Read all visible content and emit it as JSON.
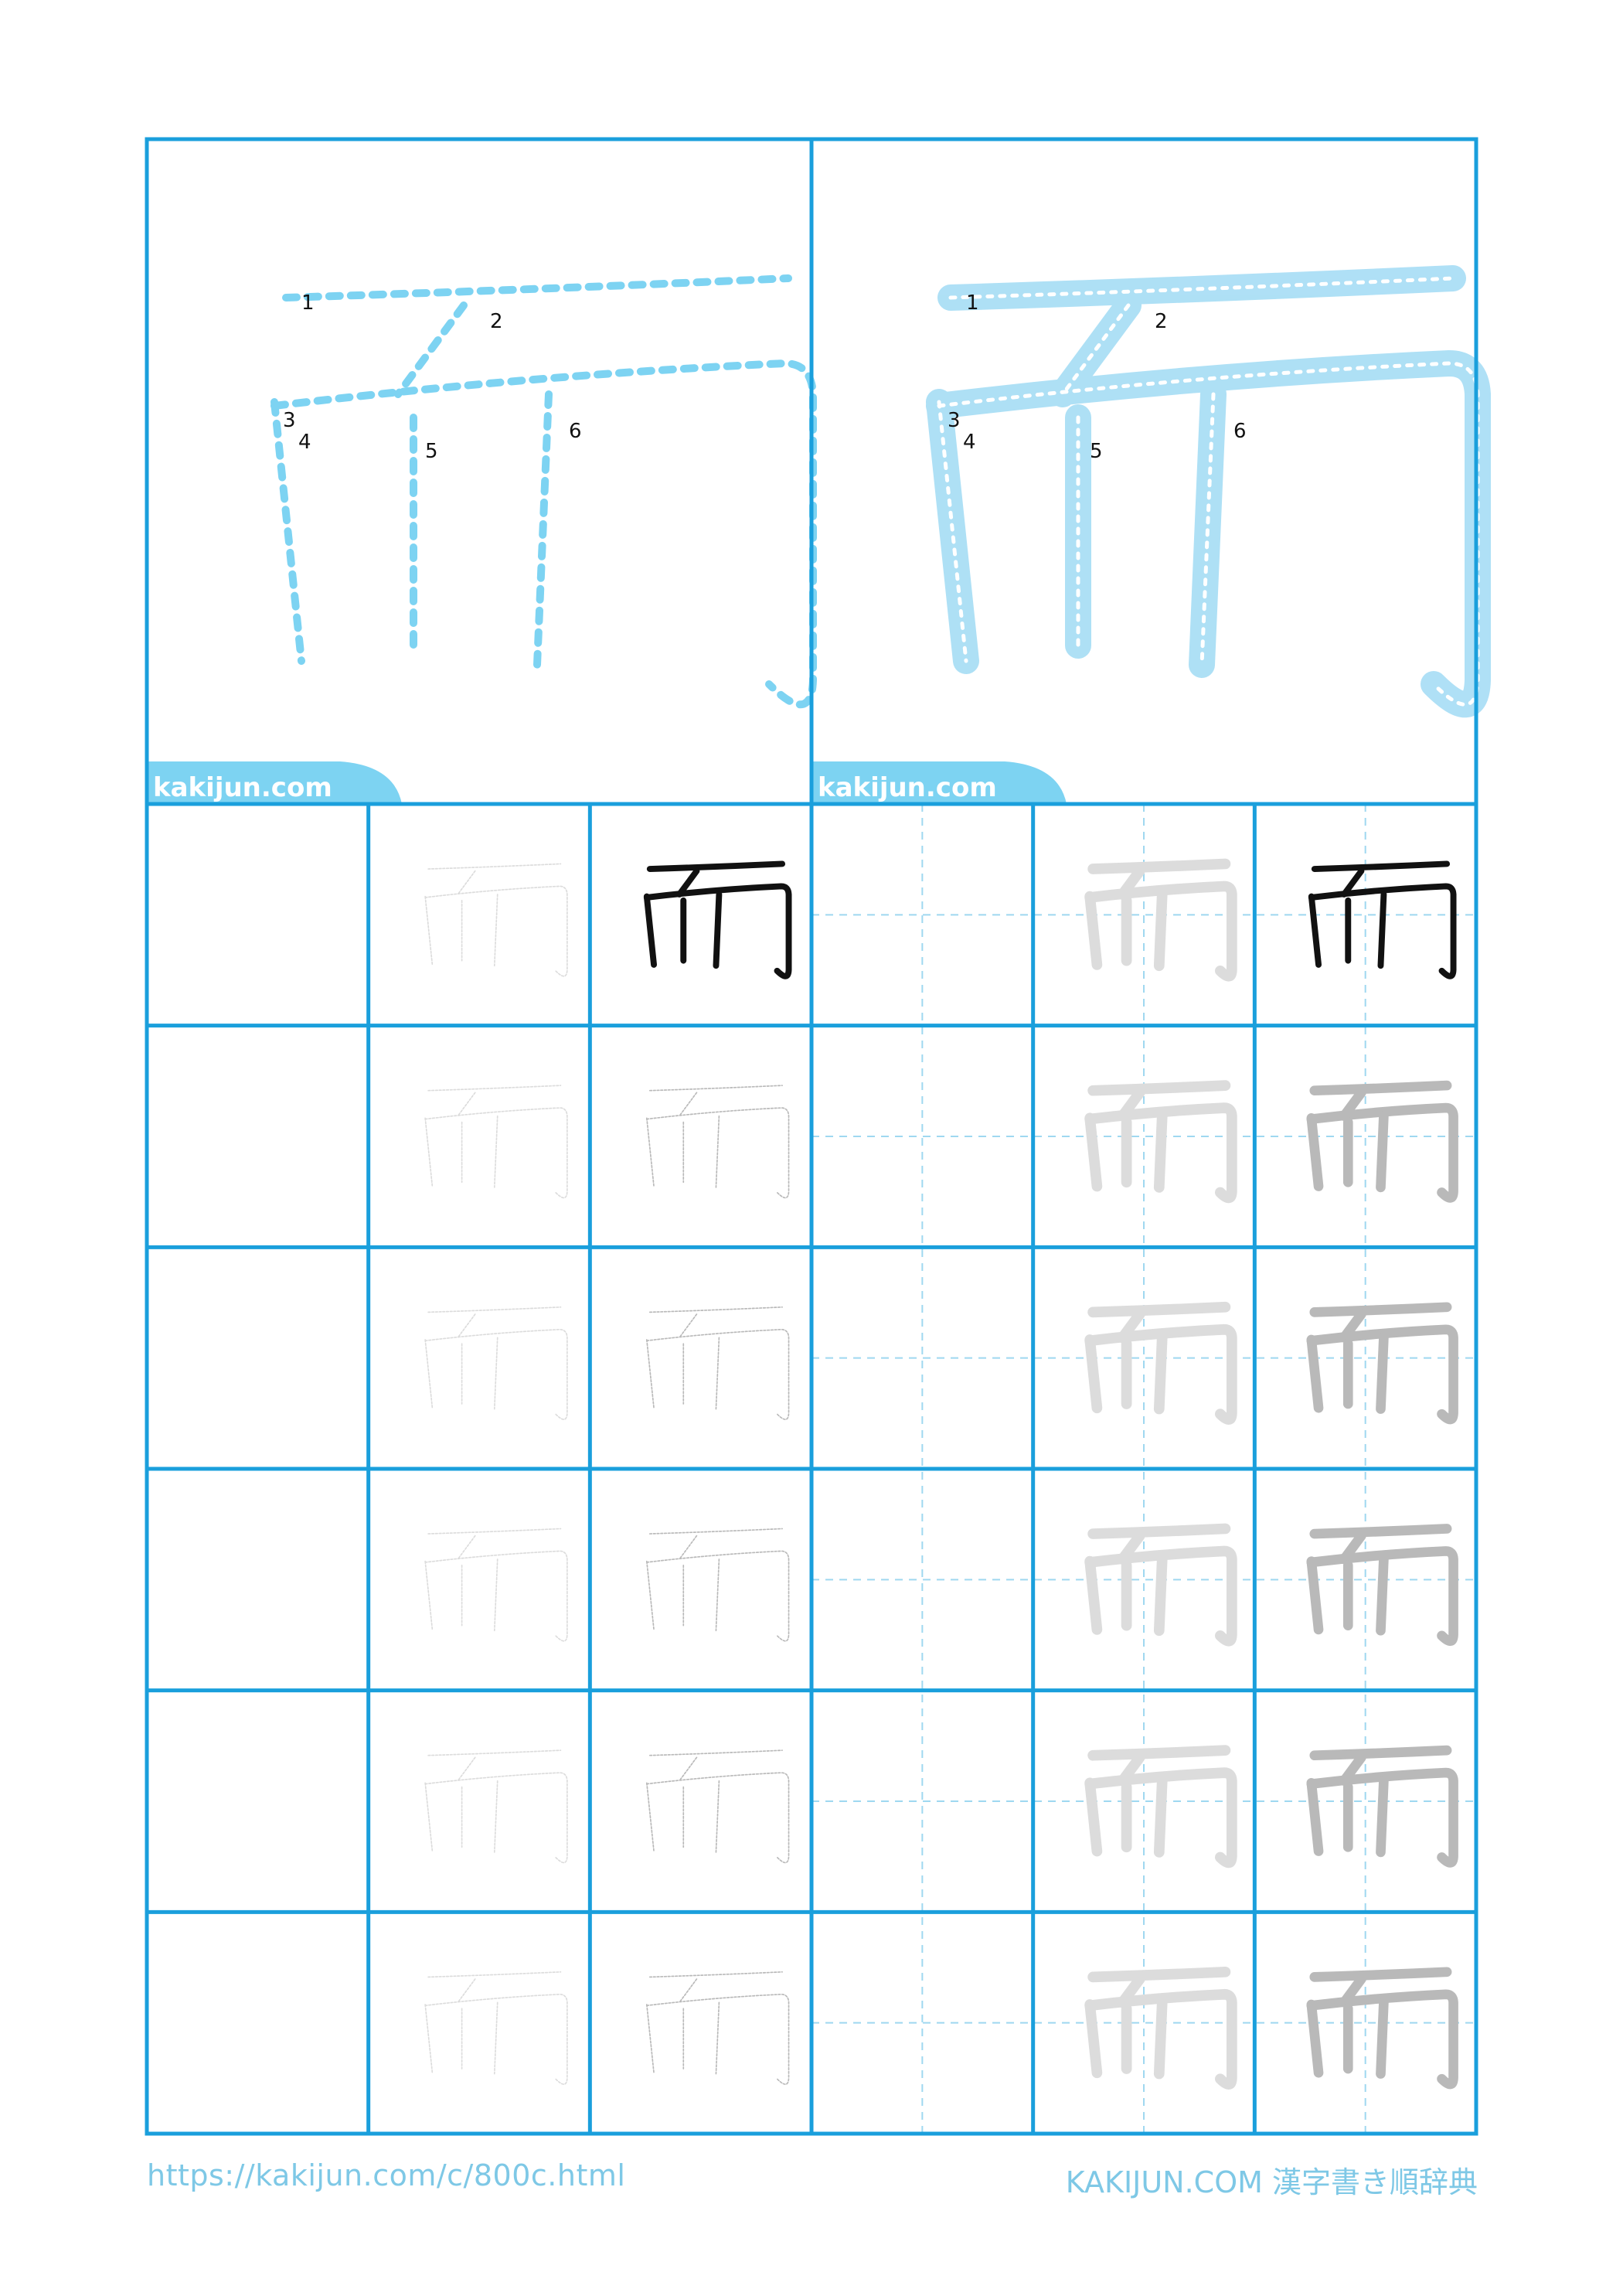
{
  "kanji": "而",
  "stroke_count": 6,
  "stroke_numbers": [
    "1",
    "2",
    "3",
    "4",
    "5",
    "6"
  ],
  "watermark": "kakijun.com",
  "footer": {
    "url": "https://kakijun.com/c/800c.html",
    "brand": "KAKIJUN.COM 漢字書き順辞典"
  },
  "practice_grid": {
    "rows": 6,
    "columns": 6,
    "model_row": [
      "blank",
      "faint-dashed",
      "solid-black",
      "blank-guide",
      "faint-gray",
      "solid-black"
    ],
    "practice_row": [
      "blank",
      "faint-dashed",
      "medium-dashed",
      "blank-guide",
      "faint-gray",
      "medium-gray"
    ]
  },
  "colors": {
    "grid_line": "#1a9fdc",
    "guide_line": "#9fd8f0",
    "stroke_dashed": "#7dd3f2",
    "stroke_band": "#a6ddf5",
    "watermark_bg": "#7dd3f2",
    "footer_text": "#7ec8e6",
    "char_faint": "#dcdcdc",
    "char_medium": "#b9b9b9",
    "char_solid": "#111111"
  }
}
